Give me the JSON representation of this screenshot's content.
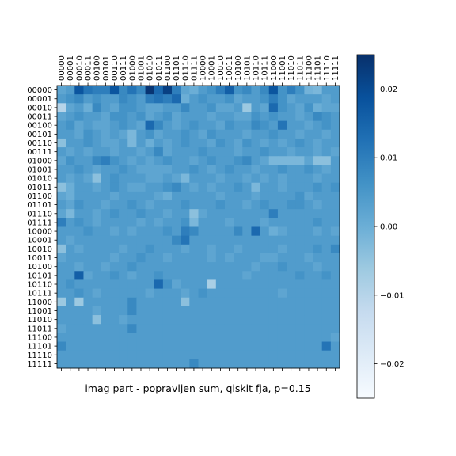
{
  "chart_data": {
    "type": "heatmap",
    "title": "imag part - popravljen sum, qiskit fja, p=0.15",
    "x_tick_labels": [
      "00000",
      "00001",
      "00010",
      "00011",
      "00100",
      "00101",
      "00110",
      "00111",
      "01000",
      "01001",
      "01010",
      "01011",
      "01100",
      "01101",
      "01110",
      "01111",
      "10000",
      "10001",
      "10010",
      "10011",
      "10100",
      "10101",
      "10110",
      "10111",
      "11000",
      "11001",
      "11010",
      "11011",
      "11100",
      "11101",
      "11110",
      "11111"
    ],
    "y_tick_labels": [
      "00000",
      "00001",
      "00010",
      "00011",
      "00100",
      "00101",
      "00110",
      "00111",
      "01000",
      "01001",
      "01010",
      "01011",
      "01100",
      "01101",
      "01110",
      "01111",
      "10000",
      "10001",
      "10010",
      "10011",
      "10100",
      "10101",
      "10110",
      "10111",
      "11000",
      "11001",
      "11010",
      "11011",
      "11100",
      "11101",
      "11110",
      "11111"
    ],
    "x_tick_position": "top",
    "colormap": "Blues",
    "colorbar": {
      "vmin": -0.025,
      "vmax": 0.025,
      "ticks": [
        -0.02,
        -0.01,
        0.0,
        0.01,
        0.02
      ],
      "tick_labels": [
        "−0.02",
        "−0.01",
        "0.00",
        "0.01",
        "0.02"
      ],
      "position": "right"
    },
    "values": [
      [
        0.002,
        0.004,
        0.018,
        0.012,
        0.01,
        0.01,
        0.018,
        0.008,
        0.012,
        0.008,
        0.024,
        0.014,
        0.022,
        0.01,
        0.002,
        0.0,
        0.004,
        0.006,
        0.01,
        0.016,
        0.006,
        0.008,
        0.004,
        0.008,
        0.018,
        0.006,
        0.01,
        0.006,
        -0.001,
        -0.002,
        0.004,
        0.004
      ],
      [
        0.004,
        0.006,
        0.008,
        0.004,
        0.006,
        0.004,
        0.004,
        0.008,
        0.006,
        0.004,
        0.01,
        0.012,
        0.01,
        0.014,
        0.0,
        0.004,
        0.006,
        0.004,
        0.004,
        0.006,
        0.002,
        0.004,
        0.004,
        0.006,
        0.01,
        0.006,
        0.002,
        0.004,
        0.004,
        0.004,
        0.002,
        0.004
      ],
      [
        -0.01,
        0.002,
        0.004,
        0.0,
        0.008,
        0.004,
        0.002,
        0.006,
        0.006,
        0.004,
        0.002,
        0.002,
        0.004,
        0.004,
        0.008,
        0.004,
        0.004,
        0.006,
        0.002,
        0.002,
        0.004,
        -0.006,
        0.004,
        0.002,
        0.014,
        0.006,
        0.004,
        0.002,
        0.006,
        0.0,
        0.002,
        0.002
      ],
      [
        0.002,
        0.004,
        0.006,
        0.004,
        0.004,
        0.002,
        0.006,
        0.006,
        0.004,
        0.006,
        0.002,
        0.004,
        0.006,
        0.002,
        0.004,
        0.004,
        0.004,
        0.002,
        0.004,
        0.004,
        0.002,
        0.002,
        0.006,
        0.004,
        0.006,
        0.004,
        0.004,
        0.002,
        0.004,
        0.008,
        0.006,
        0.004
      ],
      [
        0.004,
        0.006,
        0.002,
        0.004,
        0.002,
        0.002,
        0.004,
        0.006,
        0.004,
        0.002,
        0.014,
        0.008,
        0.004,
        0.002,
        0.004,
        0.006,
        0.004,
        0.004,
        0.002,
        0.006,
        0.004,
        0.004,
        0.008,
        0.006,
        0.004,
        0.012,
        0.004,
        0.004,
        0.002,
        0.004,
        0.006,
        0.004
      ],
      [
        0.004,
        0.004,
        0.002,
        0.006,
        0.004,
        0.002,
        0.004,
        0.002,
        -0.002,
        0.004,
        0.006,
        0.002,
        0.004,
        0.004,
        0.006,
        0.004,
        0.002,
        0.006,
        0.004,
        0.004,
        0.004,
        0.002,
        0.004,
        0.004,
        0.006,
        0.004,
        0.004,
        0.002,
        0.004,
        0.004,
        0.002,
        0.004
      ],
      [
        -0.004,
        0.004,
        0.004,
        0.006,
        0.004,
        0.002,
        0.002,
        0.004,
        -0.002,
        0.004,
        0.0,
        0.004,
        0.002,
        0.004,
        0.006,
        0.004,
        0.004,
        0.002,
        0.006,
        0.004,
        0.002,
        0.006,
        0.004,
        0.002,
        0.004,
        0.002,
        0.004,
        0.006,
        0.004,
        0.002,
        0.004,
        0.004
      ],
      [
        0.004,
        0.002,
        0.004,
        0.002,
        0.004,
        0.004,
        0.002,
        0.004,
        0.004,
        0.002,
        0.004,
        0.008,
        0.002,
        0.004,
        0.004,
        0.004,
        0.006,
        0.004,
        0.004,
        0.004,
        0.002,
        0.004,
        0.004,
        0.006,
        0.004,
        0.004,
        0.002,
        0.004,
        0.004,
        0.002,
        0.004,
        0.002
      ],
      [
        0.002,
        0.006,
        0.004,
        0.004,
        0.008,
        0.01,
        0.006,
        0.004,
        0.002,
        0.004,
        0.002,
        0.004,
        0.006,
        0.004,
        0.004,
        0.002,
        0.004,
        0.006,
        0.004,
        0.004,
        0.006,
        0.008,
        0.004,
        0.002,
        -0.002,
        -0.002,
        -0.002,
        -0.002,
        0.002,
        -0.004,
        -0.004,
        0.004
      ],
      [
        0.004,
        0.004,
        0.006,
        0.004,
        0.002,
        0.004,
        0.004,
        0.006,
        0.004,
        0.002,
        0.002,
        0.002,
        0.002,
        0.004,
        0.004,
        0.006,
        0.004,
        0.002,
        0.004,
        0.006,
        0.004,
        0.004,
        0.002,
        0.004,
        0.004,
        0.006,
        0.004,
        0.004,
        0.006,
        0.004,
        0.002,
        0.004
      ],
      [
        0.004,
        0.002,
        0.004,
        0.002,
        -0.004,
        0.004,
        0.006,
        0.004,
        0.004,
        0.004,
        0.002,
        0.002,
        0.004,
        0.002,
        -0.002,
        0.004,
        0.004,
        0.004,
        0.002,
        0.004,
        0.004,
        0.002,
        0.004,
        0.002,
        0.004,
        0.002,
        0.004,
        0.004,
        0.004,
        0.002,
        0.004,
        0.004
      ],
      [
        -0.004,
        0.0,
        0.004,
        0.004,
        0.002,
        0.004,
        0.006,
        0.004,
        0.002,
        0.002,
        0.004,
        0.004,
        0.006,
        0.008,
        0.004,
        0.002,
        0.004,
        0.002,
        0.004,
        0.004,
        0.006,
        0.004,
        -0.002,
        0.004,
        0.004,
        0.002,
        0.004,
        0.004,
        0.004,
        0.006,
        0.004,
        0.006
      ],
      [
        0.002,
        0.0,
        0.004,
        0.004,
        0.004,
        0.004,
        0.002,
        0.004,
        0.004,
        0.004,
        0.004,
        0.002,
        0.0,
        0.004,
        0.004,
        0.004,
        0.004,
        0.004,
        0.002,
        0.004,
        0.004,
        0.004,
        0.002,
        0.004,
        0.004,
        0.004,
        0.004,
        0.006,
        0.002,
        0.004,
        0.004,
        0.004
      ],
      [
        0.004,
        0.002,
        0.006,
        0.004,
        0.004,
        0.002,
        0.004,
        0.004,
        0.006,
        0.004,
        0.002,
        0.004,
        0.004,
        0.004,
        0.006,
        0.004,
        0.004,
        0.004,
        0.006,
        0.004,
        0.004,
        0.002,
        0.004,
        0.006,
        0.004,
        0.004,
        0.006,
        0.006,
        0.004,
        0.002,
        0.004,
        0.004
      ],
      [
        0.002,
        -0.002,
        0.004,
        0.004,
        0.002,
        0.004,
        0.006,
        0.004,
        0.004,
        0.006,
        0.004,
        0.004,
        0.002,
        0.004,
        0.004,
        -0.004,
        0.002,
        0.004,
        0.004,
        0.004,
        0.004,
        0.004,
        0.004,
        0.004,
        0.01,
        0.004,
        0.004,
        0.004,
        0.004,
        0.004,
        0.004,
        0.004
      ],
      [
        0.01,
        0.004,
        0.006,
        0.004,
        0.002,
        0.004,
        0.004,
        0.004,
        0.004,
        0.002,
        0.004,
        0.002,
        0.004,
        0.004,
        0.006,
        -0.002,
        0.004,
        0.004,
        0.004,
        0.002,
        0.004,
        0.004,
        0.004,
        0.002,
        0.004,
        0.004,
        0.004,
        0.004,
        0.004,
        0.006,
        0.004,
        0.004
      ],
      [
        0.004,
        0.004,
        0.004,
        0.006,
        0.004,
        0.004,
        0.002,
        0.004,
        0.002,
        0.004,
        0.004,
        0.004,
        0.006,
        0.004,
        0.01,
        0.008,
        0.004,
        0.004,
        0.004,
        0.004,
        0.008,
        0.004,
        0.014,
        0.004,
        0.0,
        0.002,
        0.004,
        0.004,
        0.004,
        0.002,
        0.004,
        0.002
      ],
      [
        0.004,
        0.002,
        0.004,
        0.004,
        0.004,
        0.004,
        0.004,
        0.004,
        0.004,
        0.004,
        0.004,
        0.004,
        0.004,
        0.008,
        0.012,
        0.004,
        0.004,
        0.004,
        0.004,
        0.004,
        0.004,
        0.004,
        0.004,
        0.004,
        0.004,
        0.004,
        0.004,
        0.004,
        0.004,
        0.004,
        0.004,
        0.004
      ],
      [
        -0.004,
        0.004,
        0.002,
        0.004,
        0.004,
        0.004,
        0.004,
        0.002,
        0.004,
        0.004,
        0.006,
        0.004,
        0.004,
        0.004,
        0.002,
        0.004,
        0.004,
        0.002,
        0.004,
        0.004,
        0.002,
        0.004,
        0.004,
        0.004,
        0.004,
        0.002,
        0.004,
        0.004,
        0.004,
        0.006,
        0.004,
        0.008
      ],
      [
        0.002,
        0.004,
        0.004,
        0.004,
        0.004,
        0.004,
        0.002,
        0.004,
        0.004,
        0.006,
        0.004,
        0.004,
        0.002,
        0.004,
        0.004,
        0.004,
        0.004,
        0.002,
        0.004,
        0.002,
        0.004,
        0.004,
        0.004,
        0.002,
        0.002,
        0.004,
        0.004,
        0.004,
        0.002,
        0.004,
        0.004,
        0.004
      ],
      [
        0.004,
        0.004,
        0.002,
        0.004,
        0.004,
        0.002,
        0.004,
        0.004,
        0.006,
        0.004,
        0.004,
        0.004,
        0.004,
        0.004,
        0.004,
        0.004,
        0.004,
        0.004,
        0.004,
        0.004,
        0.004,
        0.004,
        0.002,
        0.004,
        0.004,
        0.006,
        0.004,
        0.004,
        0.004,
        0.002,
        0.004,
        0.004
      ],
      [
        0.004,
        0.004,
        0.016,
        0.002,
        0.004,
        0.004,
        0.006,
        0.004,
        0.002,
        0.004,
        0.004,
        0.006,
        0.004,
        0.004,
        0.004,
        0.004,
        0.004,
        0.004,
        0.004,
        0.004,
        0.004,
        0.002,
        0.004,
        0.004,
        0.004,
        0.004,
        0.004,
        0.006,
        0.004,
        0.004,
        0.006,
        0.004
      ],
      [
        0.004,
        0.006,
        0.004,
        0.004,
        0.004,
        0.004,
        0.004,
        0.004,
        0.004,
        0.004,
        0.004,
        0.014,
        0.006,
        0.002,
        0.004,
        0.004,
        0.004,
        -0.008,
        0.004,
        0.004,
        0.004,
        0.004,
        0.004,
        0.004,
        0.004,
        0.004,
        0.004,
        0.004,
        0.004,
        0.004,
        0.004,
        0.004
      ],
      [
        0.004,
        0.004,
        0.006,
        0.004,
        0.002,
        0.004,
        0.004,
        0.004,
        0.004,
        0.004,
        0.002,
        0.004,
        0.004,
        0.004,
        0.002,
        0.004,
        0.006,
        0.004,
        0.004,
        0.004,
        0.004,
        0.004,
        0.004,
        0.004,
        0.004,
        0.002,
        0.004,
        0.004,
        0.004,
        0.004,
        0.004,
        0.004
      ],
      [
        -0.006,
        0.004,
        -0.006,
        0.004,
        0.004,
        0.004,
        0.004,
        0.004,
        0.008,
        0.004,
        0.004,
        0.004,
        0.004,
        0.004,
        -0.004,
        0.004,
        0.004,
        0.004,
        0.004,
        0.004,
        0.004,
        0.004,
        0.004,
        0.004,
        0.004,
        0.004,
        0.004,
        0.004,
        0.004,
        0.004,
        0.004,
        0.004
      ],
      [
        0.004,
        0.004,
        0.004,
        0.004,
        0.002,
        0.004,
        0.004,
        0.004,
        0.008,
        0.004,
        0.004,
        0.004,
        0.004,
        0.004,
        0.004,
        0.004,
        0.004,
        0.004,
        0.004,
        0.004,
        0.004,
        0.004,
        0.004,
        0.004,
        0.004,
        0.004,
        0.004,
        0.004,
        0.004,
        0.004,
        0.004,
        0.004
      ],
      [
        0.004,
        0.004,
        0.004,
        0.004,
        -0.004,
        0.004,
        0.004,
        0.002,
        0.004,
        0.004,
        0.004,
        0.004,
        0.004,
        0.004,
        0.004,
        0.004,
        0.004,
        0.004,
        0.004,
        0.004,
        0.004,
        0.004,
        0.004,
        0.004,
        0.004,
        0.004,
        0.004,
        0.004,
        0.004,
        0.004,
        0.004,
        0.004
      ],
      [
        0.002,
        0.004,
        0.004,
        0.004,
        0.004,
        0.004,
        0.004,
        0.004,
        0.008,
        0.004,
        0.004,
        0.004,
        0.004,
        0.004,
        0.004,
        0.004,
        0.004,
        0.004,
        0.004,
        0.004,
        0.004,
        0.004,
        0.004,
        0.004,
        0.004,
        0.004,
        0.004,
        0.004,
        0.004,
        0.004,
        0.004,
        0.004
      ],
      [
        0.004,
        0.004,
        0.004,
        0.004,
        0.004,
        0.004,
        0.004,
        0.004,
        0.004,
        0.004,
        0.004,
        0.004,
        0.004,
        0.004,
        0.004,
        0.004,
        0.004,
        0.004,
        0.004,
        0.004,
        0.004,
        0.004,
        0.004,
        0.004,
        0.004,
        0.004,
        0.004,
        0.004,
        0.004,
        0.004,
        0.004,
        0.002
      ],
      [
        0.008,
        0.004,
        0.004,
        0.004,
        0.004,
        0.004,
        0.004,
        0.004,
        0.004,
        0.004,
        0.004,
        0.004,
        0.004,
        0.004,
        0.004,
        0.004,
        0.004,
        0.004,
        0.004,
        0.004,
        0.004,
        0.004,
        0.004,
        0.004,
        0.004,
        0.004,
        0.004,
        0.004,
        0.004,
        0.004,
        0.012,
        0.004
      ],
      [
        0.004,
        0.004,
        0.004,
        0.004,
        0.004,
        0.004,
        0.004,
        0.004,
        0.004,
        0.004,
        0.004,
        0.004,
        0.004,
        0.004,
        0.004,
        0.004,
        0.004,
        0.004,
        0.004,
        0.004,
        0.004,
        0.004,
        0.004,
        0.004,
        0.004,
        0.004,
        0.004,
        0.004,
        0.004,
        0.004,
        0.004,
        0.004
      ],
      [
        0.004,
        0.004,
        0.004,
        0.004,
        0.004,
        0.004,
        0.004,
        0.004,
        0.004,
        0.004,
        0.004,
        0.004,
        0.004,
        0.004,
        0.004,
        0.008,
        0.004,
        0.004,
        0.004,
        0.004,
        0.004,
        0.004,
        0.004,
        0.004,
        0.004,
        0.004,
        0.004,
        0.004,
        0.004,
        0.004,
        0.004,
        0.004
      ]
    ]
  }
}
